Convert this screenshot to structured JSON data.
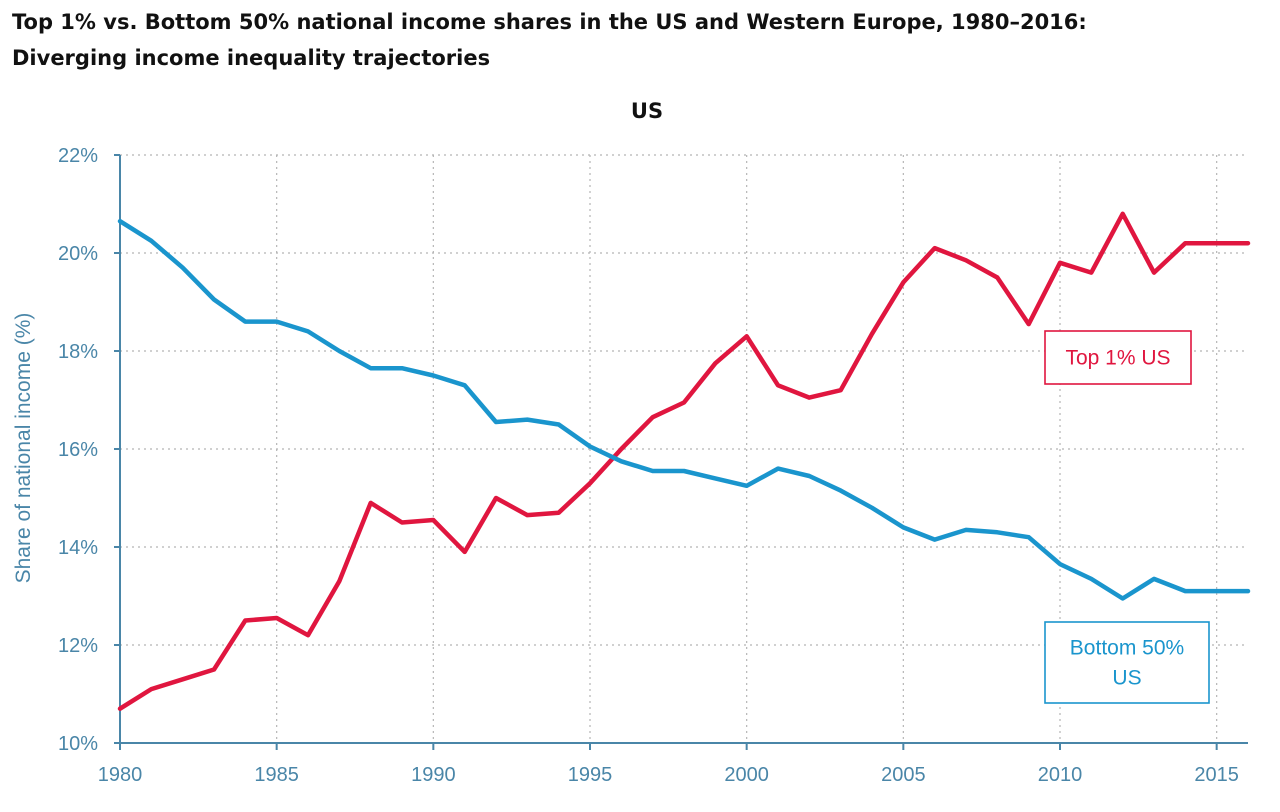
{
  "title": {
    "line1": "Top 1% vs. Bottom 50% national income shares in the US and Western Europe, 1980–2016:",
    "line2": "Diverging income inequality trajectories"
  },
  "chart_data": {
    "type": "line",
    "panel_title": "US",
    "ylabel": "Share of national income (%)",
    "xlabel": "",
    "xlim": [
      1980,
      2016
    ],
    "ylim": [
      10,
      22
    ],
    "x_ticks": [
      1980,
      1985,
      1990,
      1995,
      2000,
      2005,
      2010,
      2015
    ],
    "y_ticks": [
      10,
      12,
      14,
      16,
      18,
      20,
      22
    ],
    "y_tick_labels": [
      "10%",
      "12%",
      "14%",
      "16%",
      "18%",
      "20%",
      "22%"
    ],
    "grid": true,
    "x": [
      1980,
      1981,
      1982,
      1983,
      1984,
      1985,
      1986,
      1987,
      1988,
      1989,
      1990,
      1991,
      1992,
      1993,
      1994,
      1995,
      1996,
      1997,
      1998,
      1999,
      2000,
      2001,
      2002,
      2003,
      2004,
      2005,
      2006,
      2007,
      2008,
      2009,
      2010,
      2011,
      2012,
      2013,
      2014,
      2015,
      2016
    ],
    "series": [
      {
        "name": "Top 1% US",
        "color": "#e0163f",
        "label_lines": [
          "Top 1% US"
        ],
        "values": [
          10.7,
          11.1,
          11.3,
          11.5,
          12.5,
          12.55,
          12.2,
          13.3,
          14.9,
          14.5,
          14.55,
          13.9,
          15.0,
          14.65,
          14.7,
          15.3,
          16.0,
          16.65,
          16.95,
          17.75,
          18.3,
          17.3,
          17.05,
          17.2,
          18.35,
          19.4,
          20.1,
          19.85,
          19.5,
          18.55,
          19.8,
          19.6,
          20.8,
          19.6,
          20.2,
          20.2,
          20.2
        ]
      },
      {
        "name": "Bottom 50% US",
        "color": "#1a95cd",
        "label_lines": [
          "Bottom 50%",
          "US"
        ],
        "values": [
          20.65,
          20.25,
          19.7,
          19.05,
          18.6,
          18.6,
          18.4,
          18.0,
          17.65,
          17.65,
          17.5,
          17.3,
          16.55,
          16.6,
          16.5,
          16.05,
          15.75,
          15.55,
          15.55,
          15.4,
          15.25,
          15.6,
          15.45,
          15.15,
          14.8,
          14.4,
          14.15,
          14.35,
          14.3,
          14.2,
          13.65,
          13.35,
          12.95,
          13.35,
          13.1,
          13.1,
          13.1
        ]
      }
    ]
  }
}
